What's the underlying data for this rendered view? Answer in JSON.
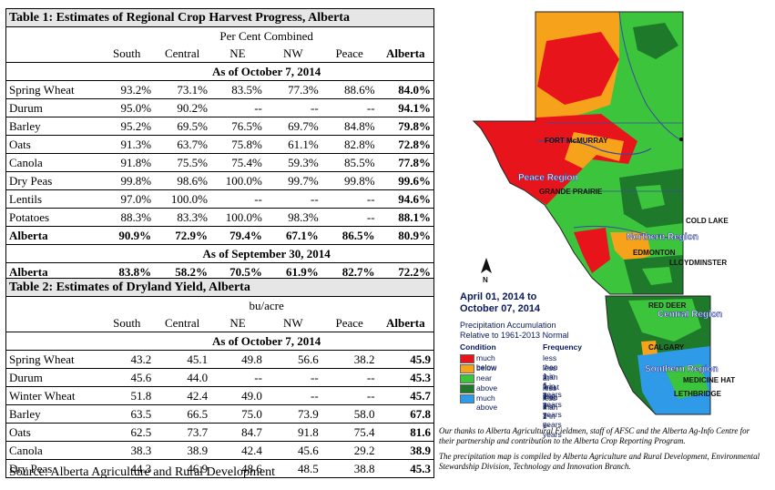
{
  "table1": {
    "title": "Table 1: Estimates of Regional Crop Harvest Progress, Alberta",
    "subtitle": "Per Cent Combined",
    "columns": [
      "South",
      "Central",
      "NE",
      "NW",
      "Peace",
      "Alberta"
    ],
    "period1": "As of October 7, 2014",
    "rows": [
      {
        "crop": "Spring Wheat",
        "v": [
          "93.2%",
          "73.1%",
          "83.5%",
          "77.3%",
          "88.6%",
          "84.0%"
        ]
      },
      {
        "crop": "Durum",
        "v": [
          "95.0%",
          "90.2%",
          "--",
          "--",
          "--",
          "94.1%"
        ]
      },
      {
        "crop": "Barley",
        "v": [
          "95.2%",
          "69.5%",
          "76.5%",
          "69.7%",
          "84.8%",
          "79.8%"
        ]
      },
      {
        "crop": "Oats",
        "v": [
          "91.3%",
          "63.7%",
          "75.8%",
          "61.1%",
          "82.8%",
          "72.8%"
        ]
      },
      {
        "crop": "Canola",
        "v": [
          "91.8%",
          "75.5%",
          "75.4%",
          "59.3%",
          "85.5%",
          "77.8%"
        ]
      },
      {
        "crop": "Dry Peas",
        "v": [
          "99.8%",
          "98.6%",
          "100.0%",
          "99.7%",
          "99.8%",
          "99.6%"
        ]
      },
      {
        "crop": "Lentils",
        "v": [
          "97.0%",
          "100.0%",
          "--",
          "--",
          "--",
          "94.6%"
        ]
      },
      {
        "crop": "Potatoes",
        "v": [
          "88.3%",
          "83.3%",
          "100.0%",
          "98.3%",
          "--",
          "88.1%"
        ]
      }
    ],
    "total1": {
      "crop": "Alberta",
      "v": [
        "90.9%",
        "72.9%",
        "79.4%",
        "67.1%",
        "86.5%",
        "80.9%"
      ]
    },
    "period2": "As of September 30, 2014",
    "total2": {
      "crop": "Alberta",
      "v": [
        "83.8%",
        "58.2%",
        "70.5%",
        "61.9%",
        "82.7%",
        "72.2%"
      ]
    }
  },
  "table2": {
    "title": "Table 2: Estimates of Dryland Yield, Alberta",
    "subtitle": "bu/acre",
    "columns": [
      "South",
      "Central",
      "NE",
      "NW",
      "Peace",
      "Alberta"
    ],
    "period": "As of October 7, 2014",
    "rows": [
      {
        "crop": "Spring Wheat",
        "v": [
          "43.2",
          "45.1",
          "49.8",
          "56.6",
          "38.2",
          "45.9"
        ]
      },
      {
        "crop": "Durum",
        "v": [
          "45.6",
          "44.0",
          "--",
          "--",
          "--",
          "45.3"
        ]
      },
      {
        "crop": "Winter Wheat",
        "v": [
          "51.8",
          "42.4",
          "49.0",
          "--",
          "--",
          "45.7"
        ]
      },
      {
        "crop": "Barley",
        "v": [
          "63.5",
          "66.5",
          "75.0",
          "73.9",
          "58.0",
          "67.8"
        ]
      },
      {
        "crop": "Oats",
        "v": [
          "62.5",
          "73.7",
          "84.7",
          "91.8",
          "75.4",
          "81.6"
        ]
      },
      {
        "crop": "Canola",
        "v": [
          "38.3",
          "38.9",
          "42.4",
          "45.6",
          "29.2",
          "38.9"
        ]
      },
      {
        "crop": "Dry Peas",
        "v": [
          "44.3",
          "46.9",
          "48.6",
          "48.5",
          "38.8",
          "45.3"
        ]
      }
    ]
  },
  "source": "Source: Alberta Agriculture and Rural Development",
  "map": {
    "date_line1": "April 01, 2014 to",
    "date_line2": "October 07, 2014",
    "sub_line1": "Precipitation Accumulation",
    "sub_line2": "Relative to 1961-2013 Normal",
    "legend_head_condition": "Condition",
    "legend_head_frequency": "Frequency",
    "legend": [
      {
        "label": "much below",
        "freq": "less than 1 in 6-years",
        "color": "#e8141c"
      },
      {
        "label": "below",
        "freq": "less than 1 in 3-years",
        "color": "#f7a21b"
      },
      {
        "label": "near",
        "freq": "at least 1 in 3-years",
        "color": "#3cc43c"
      },
      {
        "label": "above",
        "freq": "less than 1 in 3-years",
        "color": "#1e7a2a"
      },
      {
        "label": "much above",
        "freq": "less than 1 in 6-years",
        "color": "#2f9be8"
      }
    ],
    "regions": {
      "peace": "Peace Region",
      "northern": "Northern Region",
      "central": "Central Region",
      "southern": "Southern Region"
    },
    "cities": {
      "fort_mcmurray": "FORT McMURRAY",
      "grande_prairie": "GRANDE PRAIRIE",
      "cold_lake": "COLD LAKE",
      "edmonton": "EDMONTON",
      "lloydminster": "LLOYDMINSTER",
      "red_deer": "RED DEER",
      "calgary": "CALGARY",
      "medicine_hat": "MEDICINE HAT",
      "lethbridge": "LETHBRIDGE"
    },
    "compass": "N"
  },
  "credits": {
    "p1": "Our thanks to Alberta Agricultural Fieldmen, staff of AFSC and the Alberta Ag-Info Centre for their partnership and contribution to the Alberta Crop Reporting Program.",
    "p2": "The precipitation map is compiled by Alberta Agriculture and Rural Development, Environmental Stewardship Division, Technology and Innovation Branch."
  }
}
